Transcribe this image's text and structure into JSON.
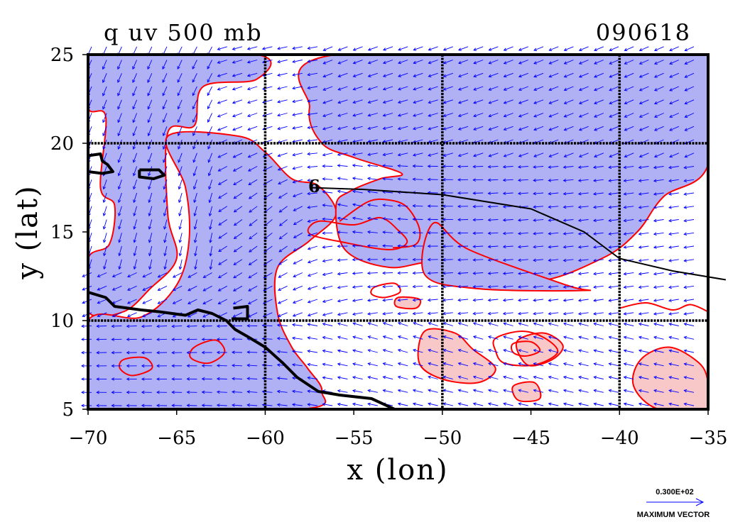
{
  "chart_data": {
    "type": "contour",
    "title": "q uv 500 mb",
    "date_label": "090618",
    "xlabel": "x (lon)",
    "ylabel": "y (lat)",
    "xlim": [
      -70,
      -35
    ],
    "ylim": [
      5,
      25
    ],
    "x_ticks": [
      -70,
      -65,
      -60,
      -55,
      -50,
      -45,
      -40,
      -35
    ],
    "y_ticks": [
      5,
      10,
      15,
      20,
      25
    ],
    "x_tick_labels": [
      "−70",
      "−65",
      "−60",
      "−55",
      "−50",
      "−45",
      "−40",
      "−35"
    ],
    "y_tick_labels": [
      "5",
      "10",
      "15",
      "20",
      "25"
    ],
    "grid_lon": [
      -60,
      -50,
      -40
    ],
    "grid_lat": [
      10,
      20
    ],
    "storm_label": "6",
    "legend": {
      "max_vector_value": "0.300E+02",
      "max_vector_label": "MAXIMUM VECTOR"
    },
    "colors": {
      "dry_fill": "#b0b0f4",
      "moist_fill": "#f8c8c8",
      "contour": "#ff0000",
      "vectors": "#0000ff",
      "coast": "#000000",
      "grid": "#000000"
    },
    "track": [
      {
        "lon": -57.5,
        "lat": 17.5
      },
      {
        "lon": -54.5,
        "lat": 17.4
      },
      {
        "lon": -50.0,
        "lat": 17.1
      },
      {
        "lon": -45.0,
        "lat": 16.3
      },
      {
        "lon": -42.0,
        "lat": 15.0
      },
      {
        "lon": -40.0,
        "lat": 13.5
      },
      {
        "lon": -37.0,
        "lat": 12.8
      },
      {
        "lon": -34.0,
        "lat": 12.3
      }
    ],
    "coastlines": [
      [
        {
          "lon": -70.0,
          "lat": 11.6
        },
        {
          "lon": -69.0,
          "lat": 11.3
        },
        {
          "lon": -68.5,
          "lat": 10.8
        },
        {
          "lon": -67.0,
          "lat": 10.6
        },
        {
          "lon": -66.0,
          "lat": 10.5
        },
        {
          "lon": -64.5,
          "lat": 10.3
        },
        {
          "lon": -63.8,
          "lat": 10.6
        },
        {
          "lon": -63.0,
          "lat": 10.4
        },
        {
          "lon": -62.2,
          "lat": 10.0
        },
        {
          "lon": -61.7,
          "lat": 9.5
        },
        {
          "lon": -61.0,
          "lat": 9.1
        },
        {
          "lon": -60.0,
          "lat": 8.5
        },
        {
          "lon": -59.0,
          "lat": 7.6
        },
        {
          "lon": -58.2,
          "lat": 6.8
        },
        {
          "lon": -57.0,
          "lat": 6.0
        },
        {
          "lon": -55.8,
          "lat": 5.8
        },
        {
          "lon": -54.0,
          "lat": 5.6
        },
        {
          "lon": -52.7,
          "lat": 5.0
        }
      ],
      [
        {
          "lon": -70.0,
          "lat": 19.3
        },
        {
          "lon": -69.3,
          "lat": 19.4
        },
        {
          "lon": -69.2,
          "lat": 19.0
        },
        {
          "lon": -68.9,
          "lat": 18.8
        },
        {
          "lon": -68.6,
          "lat": 18.4
        },
        {
          "lon": -69.2,
          "lat": 18.3
        },
        {
          "lon": -70.0,
          "lat": 18.4
        }
      ],
      [
        {
          "lon": -67.1,
          "lat": 18.5
        },
        {
          "lon": -66.0,
          "lat": 18.5
        },
        {
          "lon": -65.7,
          "lat": 18.2
        },
        {
          "lon": -66.3,
          "lat": 18.0
        },
        {
          "lon": -67.1,
          "lat": 18.1
        },
        {
          "lon": -67.1,
          "lat": 18.5
        }
      ],
      [
        {
          "lon": -61.8,
          "lat": 10.7
        },
        {
          "lon": -61.0,
          "lat": 10.8
        },
        {
          "lon": -61.0,
          "lat": 10.1
        },
        {
          "lon": -61.9,
          "lat": 10.1
        }
      ]
    ],
    "dry_regions": [
      [
        {
          "lon": -70,
          "lat": 25
        },
        {
          "lon": -60.5,
          "lat": 25
        },
        {
          "lon": -60.5,
          "lat": 23.6
        },
        {
          "lon": -63.5,
          "lat": 23.2
        },
        {
          "lon": -64.0,
          "lat": 21.0
        },
        {
          "lon": -65.5,
          "lat": 20.6
        },
        {
          "lon": -65.5,
          "lat": 16.0
        },
        {
          "lon": -65.0,
          "lat": 13.5
        },
        {
          "lon": -66.5,
          "lat": 11.8
        },
        {
          "lon": -68.0,
          "lat": 10.5
        },
        {
          "lon": -70,
          "lat": 10.5
        },
        {
          "lon": -70,
          "lat": 13.5
        },
        {
          "lon": -68.8,
          "lat": 14.3
        },
        {
          "lon": -68.5,
          "lat": 16.5
        },
        {
          "lon": -69.3,
          "lat": 17.5
        },
        {
          "lon": -69.0,
          "lat": 21.5
        },
        {
          "lon": -70,
          "lat": 22.0
        }
      ],
      [
        {
          "lon": -65.5,
          "lat": 20.4
        },
        {
          "lon": -61.5,
          "lat": 20.4
        },
        {
          "lon": -60.0,
          "lat": 19.5
        },
        {
          "lon": -58.5,
          "lat": 18.0
        },
        {
          "lon": -57.0,
          "lat": 17.6
        },
        {
          "lon": -56.0,
          "lat": 16.0
        },
        {
          "lon": -57.5,
          "lat": 14.5
        },
        {
          "lon": -59.3,
          "lat": 13.0
        },
        {
          "lon": -59.3,
          "lat": 10.4
        },
        {
          "lon": -58.5,
          "lat": 8.5
        },
        {
          "lon": -57.6,
          "lat": 7.3
        },
        {
          "lon": -56.8,
          "lat": 6.0
        },
        {
          "lon": -58.0,
          "lat": 5.0
        },
        {
          "lon": -70,
          "lat": 5.0
        },
        {
          "lon": -70,
          "lat": 10.0
        },
        {
          "lon": -67.0,
          "lat": 10.2
        },
        {
          "lon": -65.0,
          "lat": 12.0
        },
        {
          "lon": -64.3,
          "lat": 14.5
        },
        {
          "lon": -64.5,
          "lat": 17.5
        }
      ],
      [
        {
          "lon": -56.0,
          "lat": 25
        },
        {
          "lon": -35.0,
          "lat": 25
        },
        {
          "lon": -35.0,
          "lat": 18.8
        },
        {
          "lon": -37.5,
          "lat": 17.0
        },
        {
          "lon": -39.0,
          "lat": 15.0
        },
        {
          "lon": -41.0,
          "lat": 13.5
        },
        {
          "lon": -45.0,
          "lat": 12.2
        },
        {
          "lon": -50.0,
          "lat": 13.3
        },
        {
          "lon": -53.0,
          "lat": 13.0
        },
        {
          "lon": -55.5,
          "lat": 14.0
        },
        {
          "lon": -56.0,
          "lat": 16.5
        },
        {
          "lon": -55.2,
          "lat": 17.3
        },
        {
          "lon": -53.5,
          "lat": 18.0
        },
        {
          "lon": -52.3,
          "lat": 18.3
        },
        {
          "lon": -55.0,
          "lat": 19.2
        },
        {
          "lon": -56.8,
          "lat": 20.0
        },
        {
          "lon": -57.5,
          "lat": 22.0
        }
      ],
      [
        {
          "lon": -50.5,
          "lat": 15.5
        },
        {
          "lon": -48.5,
          "lat": 14.0
        },
        {
          "lon": -43.0,
          "lat": 12.0
        },
        {
          "lon": -42.0,
          "lat": 11.7
        },
        {
          "lon": -48.0,
          "lat": 11.8
        },
        {
          "lon": -51.0,
          "lat": 12.6
        }
      ]
    ],
    "moist_regions": [
      [
        {
          "lon": -51.0,
          "lat": 9.4
        },
        {
          "lon": -49.3,
          "lat": 9.3
        },
        {
          "lon": -48.3,
          "lat": 8.4
        },
        {
          "lon": -47.0,
          "lat": 7.3
        },
        {
          "lon": -48.0,
          "lat": 6.5
        },
        {
          "lon": -50.0,
          "lat": 6.7
        },
        {
          "lon": -51.3,
          "lat": 7.6
        }
      ],
      [
        {
          "lon": -45.8,
          "lat": 8.8
        },
        {
          "lon": -44.3,
          "lat": 9.3
        },
        {
          "lon": -43.2,
          "lat": 8.6
        },
        {
          "lon": -43.8,
          "lat": 7.8
        },
        {
          "lon": -45.2,
          "lat": 7.5
        }
      ],
      [
        {
          "lon": -46.0,
          "lat": 6.3
        },
        {
          "lon": -44.8,
          "lat": 6.5
        },
        {
          "lon": -44.5,
          "lat": 5.6
        },
        {
          "lon": -45.7,
          "lat": 5.5
        }
      ],
      [
        {
          "lon": -38.8,
          "lat": 7.8
        },
        {
          "lon": -37.2,
          "lat": 8.5
        },
        {
          "lon": -35.5,
          "lat": 7.6
        },
        {
          "lon": -35.0,
          "lat": 6.5
        },
        {
          "lon": -35.0,
          "lat": 5.0
        },
        {
          "lon": -37.8,
          "lat": 5.0
        },
        {
          "lon": -39.2,
          "lat": 6.3
        }
      ],
      [
        {
          "lon": -52.5,
          "lat": 11.3
        },
        {
          "lon": -51.3,
          "lat": 11.2
        },
        {
          "lon": -51.5,
          "lat": 10.7
        },
        {
          "lon": -52.6,
          "lat": 10.8
        }
      ]
    ],
    "contour_lines": [
      [
        {
          "lon": -57.0,
          "lat": 15.6
        },
        {
          "lon": -55.0,
          "lat": 15.4
        },
        {
          "lon": -53.5,
          "lat": 15.8
        },
        {
          "lon": -52.5,
          "lat": 15.1
        },
        {
          "lon": -52.0,
          "lat": 14.4
        },
        {
          "lon": -53.0,
          "lat": 14.0
        },
        {
          "lon": -55.5,
          "lat": 14.4
        },
        {
          "lon": -57.5,
          "lat": 14.9
        }
      ],
      [
        {
          "lon": -55.8,
          "lat": 15.6
        },
        {
          "lon": -54.2,
          "lat": 16.7
        },
        {
          "lon": -53.0,
          "lat": 16.8
        },
        {
          "lon": -52.0,
          "lat": 16.4
        },
        {
          "lon": -51.3,
          "lat": 15.2
        },
        {
          "lon": -51.5,
          "lat": 14.3
        },
        {
          "lon": -52.8,
          "lat": 14.1
        }
      ],
      [
        {
          "lon": -47.0,
          "lat": 9.0
        },
        {
          "lon": -45.5,
          "lat": 9.4
        },
        {
          "lon": -44.2,
          "lat": 9.0
        },
        {
          "lon": -43.5,
          "lat": 8.2
        },
        {
          "lon": -44.8,
          "lat": 7.5
        },
        {
          "lon": -46.5,
          "lat": 7.6
        },
        {
          "lon": -47.0,
          "lat": 8.3
        }
      ],
      [
        {
          "lon": -46.0,
          "lat": 8.7
        },
        {
          "lon": -45.0,
          "lat": 8.8
        },
        {
          "lon": -44.5,
          "lat": 8.3
        },
        {
          "lon": -45.3,
          "lat": 8.0
        },
        {
          "lon": -46.0,
          "lat": 8.2
        }
      ],
      [
        {
          "lon": -64.0,
          "lat": 8.5
        },
        {
          "lon": -62.8,
          "lat": 8.9
        },
        {
          "lon": -62.3,
          "lat": 8.2
        },
        {
          "lon": -63.2,
          "lat": 7.6
        },
        {
          "lon": -64.2,
          "lat": 7.9
        }
      ],
      [
        {
          "lon": -68.0,
          "lat": 7.8
        },
        {
          "lon": -66.8,
          "lat": 7.9
        },
        {
          "lon": -66.4,
          "lat": 7.3
        },
        {
          "lon": -67.5,
          "lat": 6.9
        },
        {
          "lon": -68.2,
          "lat": 7.3
        }
      ],
      [
        {
          "lon": -53.8,
          "lat": 11.9
        },
        {
          "lon": -52.7,
          "lat": 12.1
        },
        {
          "lon": -52.4,
          "lat": 11.6
        },
        {
          "lon": -53.3,
          "lat": 11.3
        },
        {
          "lon": -54.0,
          "lat": 11.5
        }
      ],
      [
        {
          "lon": -40.0,
          "lat": 10.7
        },
        {
          "lon": -38.5,
          "lat": 11.0
        },
        {
          "lon": -37.0,
          "lat": 10.6
        },
        {
          "lon": -36.0,
          "lat": 10.9
        },
        {
          "lon": -35.0,
          "lat": 10.5
        }
      ]
    ]
  }
}
